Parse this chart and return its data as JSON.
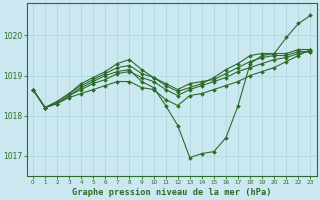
{
  "title": "Graphe pression niveau de la mer (hPa)",
  "background_color": "#cbe8f0",
  "grid_color": "#b0d8e0",
  "line_color": "#2d6b2d",
  "xlim": [
    -0.5,
    23.5
  ],
  "ylim": [
    1016.5,
    1020.8
  ],
  "yticks": [
    1017,
    1018,
    1019,
    1020
  ],
  "xticks": [
    0,
    1,
    2,
    3,
    4,
    5,
    6,
    7,
    8,
    9,
    10,
    11,
    12,
    13,
    14,
    15,
    16,
    17,
    18,
    19,
    20,
    21,
    22,
    23
  ],
  "curves": [
    [
      1018.65,
      1018.2,
      1018.3,
      1018.45,
      1018.55,
      1018.65,
      1018.75,
      1018.85,
      1018.85,
      1018.7,
      1018.65,
      1018.4,
      1018.25,
      1018.5,
      1018.55,
      1018.65,
      1018.75,
      1018.85,
      1019.0,
      1019.1,
      1019.2,
      1019.35,
      1019.5,
      1019.65
    ],
    [
      1018.65,
      1018.2,
      1018.3,
      1018.5,
      1018.65,
      1018.8,
      1018.9,
      1019.05,
      1019.1,
      1018.95,
      1018.85,
      1018.65,
      1018.5,
      1018.65,
      1018.75,
      1018.85,
      1018.95,
      1019.1,
      1019.2,
      1019.3,
      1019.4,
      1019.45,
      1019.55,
      1019.6
    ],
    [
      1018.65,
      1018.2,
      1018.35,
      1018.55,
      1018.75,
      1018.9,
      1019.05,
      1019.2,
      1019.25,
      1019.05,
      1018.95,
      1018.8,
      1018.65,
      1018.8,
      1018.85,
      1018.9,
      1019.05,
      1019.2,
      1019.35,
      1019.45,
      1019.5,
      1019.5,
      1019.6,
      1019.6
    ],
    [
      1018.65,
      1018.2,
      1018.35,
      1018.55,
      1018.8,
      1018.95,
      1019.1,
      1019.3,
      1019.4,
      1019.15,
      1018.95,
      1018.75,
      1018.6,
      1018.7,
      1018.8,
      1018.95,
      1019.15,
      1019.3,
      1019.5,
      1019.55,
      1019.55,
      1019.55,
      1019.65,
      1019.65
    ],
    [
      1018.65,
      1018.2,
      1018.3,
      1018.5,
      1018.7,
      1018.85,
      1019.0,
      1019.1,
      1019.15,
      1018.85,
      1018.7,
      1018.25,
      1017.75,
      1016.95,
      1017.05,
      1017.1,
      1017.45,
      1018.25,
      1019.3,
      1019.5,
      1019.55,
      1019.95,
      1020.3,
      1020.5
    ]
  ]
}
